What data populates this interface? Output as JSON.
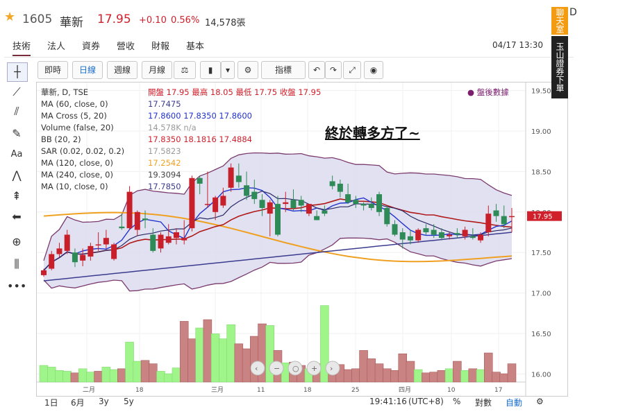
{
  "header": {
    "code": "1605",
    "name": "華新",
    "price": "17.95",
    "change": "+0.10",
    "percent": "0.56%",
    "volume": "14,578張"
  },
  "tabs": [
    "技術",
    "法人",
    "資券",
    "營收",
    "財報",
    "基本"
  ],
  "active_tab": "技術",
  "datetime": "04/17 13:30",
  "toolbar": [
    "即時",
    "日線",
    "週線",
    "月線",
    "指標"
  ],
  "active_toolbar": "日線",
  "annotation": "終於轉多方了~",
  "after_hours": "盤後數據",
  "legend": [
    {
      "text": "華新, D, TSE",
      "values": "開盤 17.95 最高 18.05 最低 17.75 收盤 17.95",
      "color": "#d0202b"
    },
    {
      "text": "MA (60, close, 0)",
      "values": "17.7475",
      "color": "#3b3b8f"
    },
    {
      "text": "MA Cross (5, 20)",
      "values": "17.8600 17.8350 17.8600",
      "color": "#2233cc"
    },
    {
      "text": "Volume (false, 20)",
      "values": "14.578K n/a",
      "color": "#999999"
    },
    {
      "text": "BB (20, 2)",
      "values": "17.8350 18.1816 17.4884",
      "color": "#d0202b"
    },
    {
      "text": "SAR (0.02, 0.02, 0.2)",
      "values": "17.5823",
      "color": "#999999"
    },
    {
      "text": "MA (120, close, 0)",
      "values": "17.2542",
      "color": "#f0a020"
    },
    {
      "text": "MA (240, close, 0)",
      "values": "19.3094",
      "color": "#444444"
    },
    {
      "text": "MA (10, close, 0)",
      "values": "17.7850",
      "color": "#3b3b8f"
    }
  ],
  "bottom": {
    "ranges": [
      "1日",
      "6月",
      "3y",
      "5y"
    ],
    "time": "19:41:16",
    "tz": "(UTC+8)",
    "pct": "%",
    "log": "對數",
    "auto": "自動"
  },
  "banner": {
    "chat": "聊天室",
    "trade": "玉山證券下單",
    "close": "D"
  },
  "chart_data": {
    "type": "candlestick",
    "title": "華新, D, TSE",
    "ylim": [
      15.9,
      19.6
    ],
    "yticks": [
      "19.50",
      "19.00",
      "18.50",
      "18.00",
      "17.50",
      "17.00",
      "16.50",
      "16.00"
    ],
    "xticks": [
      "二月",
      "18",
      "三月",
      "11",
      "18",
      "25",
      "四月",
      "10",
      "17"
    ],
    "last_price_label": "17.95",
    "ohlc": [
      [
        17.22,
        17.3,
        17.2,
        17.28
      ],
      [
        17.3,
        17.52,
        17.28,
        17.48
      ],
      [
        17.48,
        17.62,
        17.44,
        17.55
      ],
      [
        17.52,
        17.78,
        17.48,
        17.72
      ],
      [
        17.5,
        17.55,
        17.32,
        17.38
      ],
      [
        17.4,
        17.55,
        17.33,
        17.47
      ],
      [
        17.45,
        17.62,
        17.4,
        17.58
      ],
      [
        17.6,
        17.75,
        17.52,
        17.6
      ],
      [
        17.6,
        17.78,
        17.55,
        17.68
      ],
      [
        17.42,
        17.62,
        17.4,
        17.6
      ],
      [
        17.82,
        17.98,
        17.78,
        17.8
      ],
      [
        17.8,
        18.32,
        17.78,
        18.25
      ],
      [
        17.78,
        18.02,
        17.7,
        18.0
      ],
      [
        17.92,
        18.02,
        17.8,
        17.9
      ],
      [
        17.72,
        17.8,
        17.5,
        17.52
      ],
      [
        17.55,
        17.75,
        17.5,
        17.72
      ],
      [
        17.62,
        17.85,
        17.6,
        17.7
      ],
      [
        17.68,
        17.8,
        17.6,
        17.75
      ],
      [
        17.65,
        17.9,
        17.6,
        17.68
      ],
      [
        17.8,
        18.45,
        17.76,
        18.42
      ],
      [
        18.42,
        18.45,
        18.22,
        18.35
      ],
      [
        18.1,
        18.5,
        18.05,
        18.1
      ],
      [
        18.0,
        18.2,
        17.9,
        18.18
      ],
      [
        18.08,
        18.3,
        18.05,
        18.2
      ],
      [
        18.3,
        18.6,
        18.25,
        18.55
      ],
      [
        18.45,
        18.6,
        18.3,
        18.37
      ],
      [
        18.33,
        18.5,
        18.15,
        18.2
      ],
      [
        18.25,
        18.4,
        18.1,
        18.16
      ],
      [
        18.15,
        18.22,
        17.95,
        18.05
      ],
      [
        17.98,
        18.15,
        17.7,
        18.12
      ],
      [
        18.1,
        18.2,
        17.7,
        17.72
      ],
      [
        18.1,
        18.25,
        18.0,
        18.12
      ],
      [
        18.15,
        18.28,
        18.02,
        18.05
      ],
      [
        18.15,
        18.2,
        18.0,
        18.08
      ],
      [
        17.98,
        18.1,
        17.95,
        18.1
      ],
      [
        17.95,
        18.02,
        17.9,
        17.9
      ],
      [
        18.02,
        18.08,
        17.95,
        17.98
      ],
      [
        18.38,
        18.45,
        18.28,
        18.32
      ],
      [
        18.35,
        18.4,
        18.18,
        18.25
      ],
      [
        18.22,
        18.35,
        18.1,
        18.12
      ],
      [
        18.15,
        18.2,
        18.05,
        18.1
      ],
      [
        18.1,
        18.12,
        18.02,
        18.08
      ],
      [
        18.1,
        18.18,
        18.02,
        18.05
      ],
      [
        18.22,
        18.25,
        17.95,
        18.0
      ],
      [
        18.05,
        18.08,
        17.82,
        17.85
      ],
      [
        17.85,
        17.9,
        17.7,
        17.72
      ],
      [
        17.75,
        17.8,
        17.55,
        17.66
      ],
      [
        17.7,
        17.78,
        17.6,
        17.65
      ],
      [
        17.65,
        17.8,
        17.62,
        17.78
      ],
      [
        17.8,
        17.85,
        17.72,
        17.75
      ],
      [
        17.78,
        17.85,
        17.68,
        17.72
      ],
      [
        17.75,
        17.8,
        17.65,
        17.68
      ],
      [
        17.7,
        17.75,
        17.66,
        17.72
      ],
      [
        17.74,
        17.8,
        17.68,
        17.72
      ],
      [
        17.7,
        17.82,
        17.66,
        17.78
      ],
      [
        17.7,
        17.8,
        17.66,
        17.68
      ],
      [
        17.65,
        17.75,
        17.62,
        17.72
      ],
      [
        17.75,
        18.08,
        17.7,
        17.98
      ],
      [
        18.02,
        18.1,
        17.88,
        17.95
      ],
      [
        17.95,
        18.08,
        17.8,
        17.85
      ],
      [
        17.95,
        18.05,
        17.75,
        17.95
      ]
    ],
    "volumes": [
      2.0,
      1.8,
      1.4,
      1.3,
      1.1,
      1.6,
      1.2,
      1.3,
      1.8,
      1.5,
      1.6,
      4.8,
      2.5,
      2.6,
      2.2,
      1.3,
      1.0,
      1.7,
      7.3,
      5.2,
      6.5,
      7.5,
      5.8,
      5.2,
      6.9,
      4.6,
      4.0,
      5.5,
      7.0,
      6.8,
      3.8,
      2.3,
      2.4,
      2.0,
      1.6,
      2.2,
      9.2,
      2.0,
      2.1,
      1.5,
      1.6,
      3.8,
      2.8,
      2.2,
      1.6,
      1.4,
      3.4,
      2.5,
      1.5,
      1.1,
      1.2,
      1.4,
      1.6,
      2.5,
      1.4,
      1.6,
      1.5,
      3.5,
      1.2,
      1.0,
      2.2
    ],
    "vol_up": [
      1,
      1,
      1,
      1,
      0,
      1,
      1,
      0,
      1,
      1,
      0,
      1,
      1,
      0,
      0,
      1,
      1,
      1,
      0,
      0,
      1,
      0,
      1,
      1,
      1,
      0,
      0,
      0,
      0,
      1,
      0,
      1,
      0,
      0,
      1,
      0,
      1,
      0,
      0,
      0,
      0,
      0,
      0,
      0,
      0,
      0,
      0,
      0,
      1,
      0,
      0,
      0,
      1,
      0,
      1,
      0,
      1,
      0,
      0,
      0,
      0
    ]
  }
}
